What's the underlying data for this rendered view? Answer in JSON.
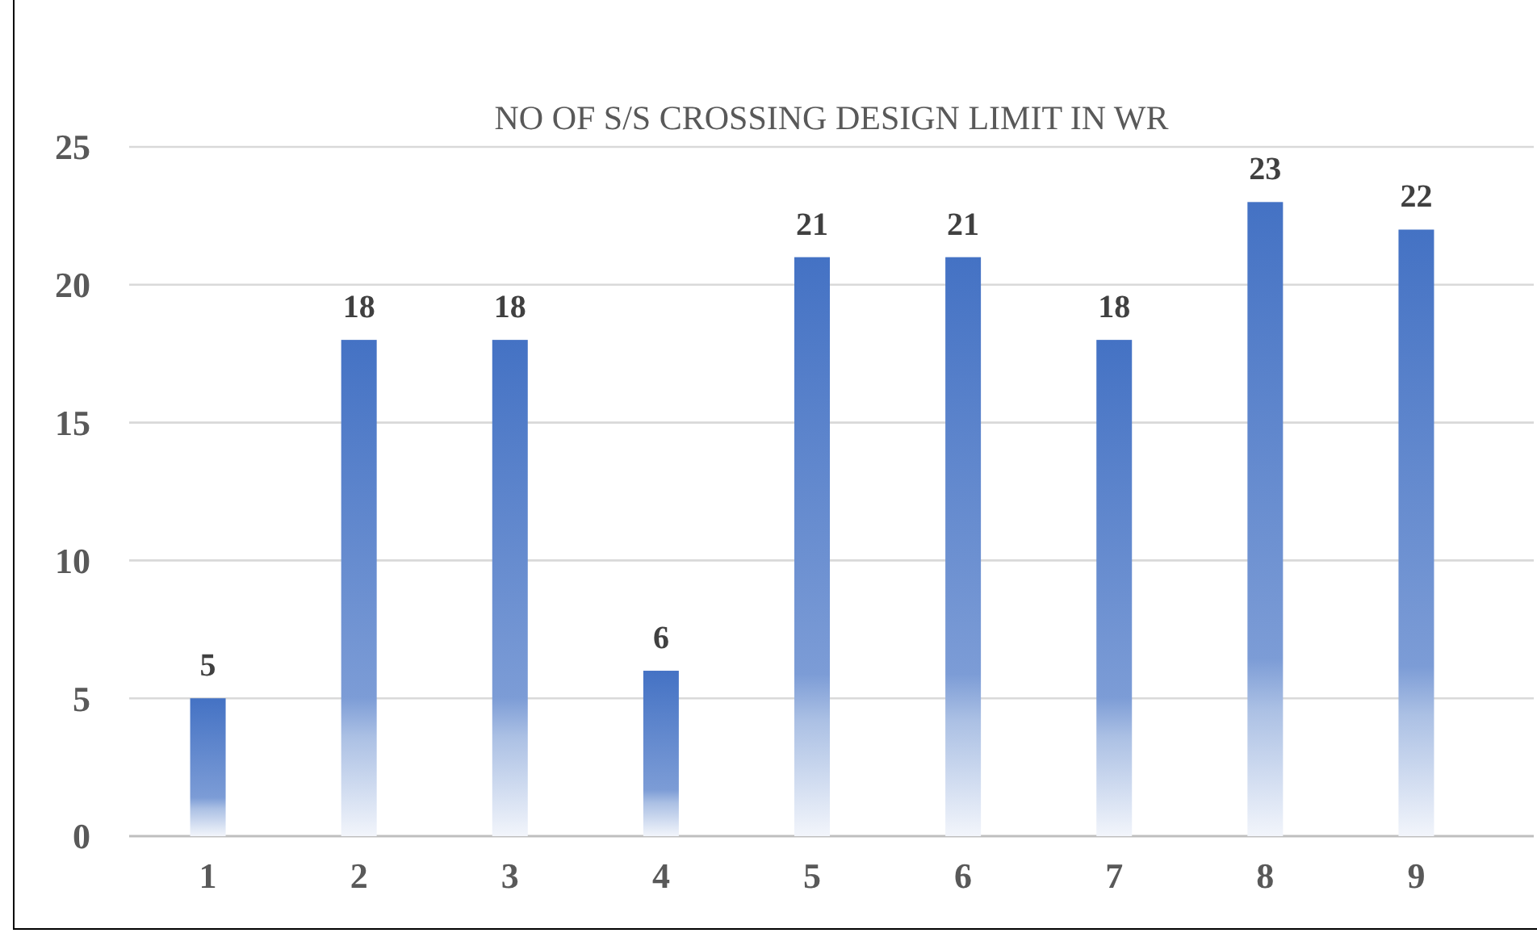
{
  "chart_data": {
    "type": "bar",
    "title": "NO OF S/S CROSSING DESIGN LIMIT IN WR",
    "categories": [
      "1",
      "2",
      "3",
      "4",
      "5",
      "6",
      "7",
      "8",
      "9"
    ],
    "values": [
      5,
      18,
      18,
      6,
      21,
      21,
      18,
      23,
      22
    ],
    "color": "#4472c4",
    "ylim": [
      0,
      25
    ],
    "yticks": [
      0,
      5,
      10,
      15,
      20,
      25
    ],
    "grid": "y",
    "data_labels": true
  }
}
